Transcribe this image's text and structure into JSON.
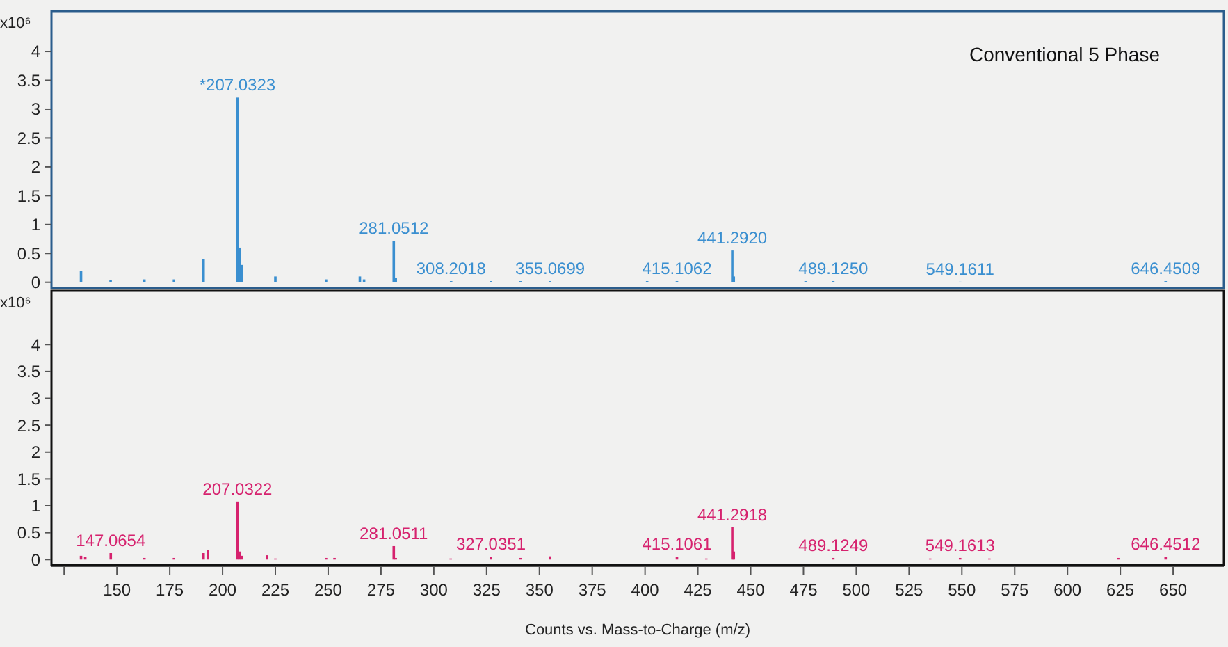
{
  "chart_data": [
    {
      "type": "bar",
      "title": "Conventional 5 Phase",
      "ylabel": "x10⁶",
      "xlim": [
        119,
        674
      ],
      "ylim": [
        -0.1,
        4.7
      ],
      "yticks": [
        0,
        0.5,
        1,
        1.5,
        2,
        2.5,
        3,
        3.5,
        4
      ],
      "tick_labels": "y",
      "series": [
        {
          "color": "#3a8fd0",
          "x": [
            133,
            147,
            163,
            177,
            191,
            207.0323,
            208,
            209,
            225,
            249,
            265,
            267,
            281.0512,
            282,
            308.2018,
            327,
            341,
            355.0699,
            401,
            415.1062,
            441.292,
            442,
            476,
            489.125,
            549.1611,
            646.4509
          ],
          "values": [
            0.2,
            0.04,
            0.05,
            0.05,
            0.4,
            3.2,
            0.6,
            0.3,
            0.1,
            0.05,
            0.1,
            0.05,
            0.72,
            0.08,
            0.02,
            0.02,
            0.02,
            0.02,
            0.02,
            0.02,
            0.55,
            0.1,
            0.02,
            0.02,
            0.01,
            0.02
          ]
        }
      ],
      "annotations": [
        {
          "text": "*207.0323",
          "x": 207.0323,
          "y": 3.2
        },
        {
          "text": "281.0512",
          "x": 281.0512,
          "y": 0.72
        },
        {
          "text": "308.2018",
          "x": 308.2018,
          "y": 0.02
        },
        {
          "text": "355.0699",
          "x": 355.0699,
          "y": 0.02
        },
        {
          "text": "415.1062",
          "x": 415.1062,
          "y": 0.02
        },
        {
          "text": "441.2920",
          "x": 441.292,
          "y": 0.55
        },
        {
          "text": "489.1250",
          "x": 489.125,
          "y": 0.02
        },
        {
          "text": "549.1611",
          "x": 549.1611,
          "y": 0.01
        },
        {
          "text": "646.4509",
          "x": 646.4509,
          "y": 0.02
        }
      ]
    },
    {
      "type": "bar",
      "xlabel": "Counts vs. Mass-to-Charge (m/z)",
      "ylabel": "x10⁶",
      "xlim": [
        119,
        674
      ],
      "ylim": [
        -0.1,
        5.0
      ],
      "yticks": [
        0,
        0.5,
        1,
        1.5,
        2,
        2.5,
        3,
        3.5,
        4
      ],
      "xticks": [
        {
          "value": 125,
          "label": null
        },
        150,
        175,
        200,
        225,
        250,
        275,
        300,
        325,
        350,
        375,
        400,
        425,
        450,
        475,
        500,
        525,
        550,
        575,
        600,
        625,
        650
      ],
      "series": [
        {
          "color": "#d6226e",
          "x": [
            133,
            135,
            147.0654,
            163,
            177,
            191,
            193,
            207.0322,
            208,
            209,
            221,
            225,
            249,
            253,
            281.0511,
            282,
            308,
            327.0351,
            341,
            355,
            415.1061,
            429,
            441.2918,
            442,
            489.1249,
            535,
            549.1613,
            563,
            624,
            646.4512
          ],
          "values": [
            0.07,
            0.05,
            0.12,
            0.03,
            0.03,
            0.12,
            0.18,
            1.08,
            0.15,
            0.07,
            0.08,
            0.02,
            0.03,
            0.03,
            0.25,
            0.03,
            0.02,
            0.05,
            0.03,
            0.06,
            0.05,
            0.02,
            0.6,
            0.15,
            0.03,
            0.02,
            0.03,
            0.02,
            0.03,
            0.05
          ]
        }
      ],
      "annotations": [
        {
          "text": "147.0654",
          "x": 147.0654,
          "y": 0.12
        },
        {
          "text": "207.0322",
          "x": 207.0322,
          "y": 1.08
        },
        {
          "text": "281.0511",
          "x": 281.0511,
          "y": 0.25
        },
        {
          "text": "327.0351",
          "x": 327.0351,
          "y": 0.05
        },
        {
          "text": "415.1061",
          "x": 415.1061,
          "y": 0.05
        },
        {
          "text": "441.2918",
          "x": 441.2918,
          "y": 0.6
        },
        {
          "text": "489.1249",
          "x": 489.1249,
          "y": 0.03
        },
        {
          "text": "549.1613",
          "x": 549.1613,
          "y": 0.03
        },
        {
          "text": "646.4512",
          "x": 646.4512,
          "y": 0.05
        }
      ]
    }
  ]
}
